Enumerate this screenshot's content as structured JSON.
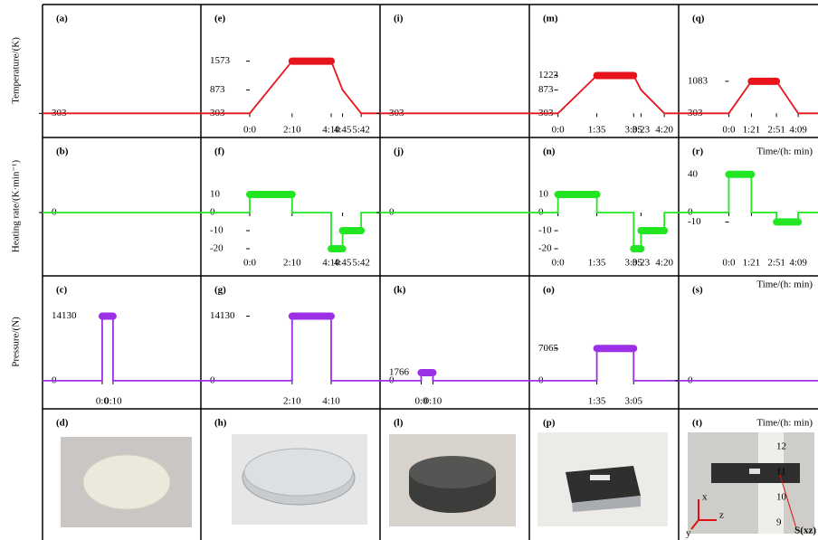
{
  "row_labels": [
    "Temperature/(K)",
    "Heating rate/(K·min⁻¹)",
    "Pressure/(N)"
  ],
  "photos": [
    {
      "label": "(d)"
    },
    {
      "label": "(h)"
    },
    {
      "label": "(l)"
    },
    {
      "label": "(p)"
    },
    {
      "label": "(t)",
      "annotations": [
        "x",
        "y",
        "z",
        "S(xz)"
      ],
      "ruler": [
        "12",
        "11",
        "10",
        "9"
      ]
    }
  ],
  "chart_data": [
    {
      "type": "line",
      "label": "(a)",
      "color": "#e8141b",
      "x": [
        -100,
        400
      ],
      "values": [
        303,
        303
      ],
      "xlim": [
        -100,
        400
      ],
      "ylim": [
        200,
        2400
      ],
      "xticks": [],
      "yticks": [
        303
      ]
    },
    {
      "type": "line",
      "label": "(e)",
      "color": "#e8141b",
      "x": [
        -150,
        0,
        130,
        250,
        285,
        342,
        400
      ],
      "values": [
        303,
        303,
        1573,
        1573,
        873,
        303,
        303
      ],
      "xlim": [
        -150,
        400
      ],
      "ylim": [
        200,
        2400
      ],
      "xticks": [
        {
          "value": 0,
          "label": "0:0"
        },
        {
          "value": 130,
          "label": "2:10"
        },
        {
          "value": 250,
          "label": "4:10"
        },
        {
          "value": 285,
          "label": "4:45"
        },
        {
          "value": 342,
          "label": "5:42"
        }
      ],
      "yticks": [
        303,
        873,
        1573
      ]
    },
    {
      "type": "line",
      "label": "(i)",
      "color": "#e8141b",
      "x": [
        -100,
        400
      ],
      "values": [
        303,
        303
      ],
      "xlim": [
        -100,
        400
      ],
      "ylim": [
        200,
        2400
      ],
      "xticks": [],
      "yticks": [
        303
      ]
    },
    {
      "type": "line",
      "label": "(m)",
      "color": "#e8141b",
      "x": [
        -70,
        0,
        95,
        185,
        203,
        260,
        295
      ],
      "values": [
        303,
        303,
        1223,
        1223,
        873,
        303,
        303
      ],
      "xlim": [
        -70,
        295
      ],
      "ylim": [
        200,
        2400
      ],
      "xticks": [
        {
          "value": 0,
          "label": "0:0"
        },
        {
          "value": 95,
          "label": "1:35"
        },
        {
          "value": 185,
          "label": "3:05"
        },
        {
          "value": 203,
          "label": "3:23"
        },
        {
          "value": 260,
          "label": "4:20"
        }
      ],
      "yticks": [
        303,
        873,
        1223
      ]
    },
    {
      "type": "line",
      "label": "(q)",
      "color": "#e8141b",
      "x": [
        -180,
        0,
        81,
        171,
        249,
        320
      ],
      "values": [
        303,
        303,
        1083,
        1083,
        303,
        303
      ],
      "xlim": [
        -180,
        320
      ],
      "ylim": [
        200,
        2400
      ],
      "xticks": [
        {
          "value": 0,
          "label": "0:0"
        },
        {
          "value": 81,
          "label": "1:21"
        },
        {
          "value": 171,
          "label": "2:51"
        },
        {
          "value": 249,
          "label": "4:09"
        }
      ],
      "yticks": [
        303,
        1083
      ],
      "xlabel": "Time/(h: min)"
    },
    {
      "type": "line",
      "label": "(b)",
      "color": "#22e622",
      "x": [
        -100,
        400
      ],
      "values": [
        0,
        0
      ],
      "xlim": [
        -100,
        400
      ],
      "ylim": [
        -21,
        29
      ],
      "xticks": [],
      "yticks": [
        0
      ]
    },
    {
      "type": "line",
      "label": "(f)",
      "color": "#22e622",
      "x": [
        -150,
        0,
        0,
        130,
        130,
        250,
        250,
        285,
        285,
        342,
        342,
        400
      ],
      "values": [
        0,
        0,
        10,
        10,
        0,
        0,
        -20,
        -20,
        -10,
        -10,
        0,
        0
      ],
      "xlim": [
        -150,
        400
      ],
      "ylim": [
        -21,
        29
      ],
      "xticks": [
        {
          "value": 0,
          "label": "0:0"
        },
        {
          "value": 130,
          "label": "2:10"
        },
        {
          "value": 250,
          "label": "4:10"
        },
        {
          "value": 285,
          "label": "4:45"
        },
        {
          "value": 342,
          "label": "5:42"
        }
      ],
      "yticks": [
        -20,
        -10,
        0,
        10
      ]
    },
    {
      "type": "line",
      "label": "(j)",
      "color": "#22e622",
      "x": [
        -100,
        400
      ],
      "values": [
        0,
        0
      ],
      "xlim": [
        -100,
        400
      ],
      "ylim": [
        -21,
        29
      ],
      "xticks": [],
      "yticks": [
        0
      ]
    },
    {
      "type": "line",
      "label": "(n)",
      "color": "#22e622",
      "x": [
        -70,
        0,
        0,
        95,
        95,
        185,
        185,
        203,
        203,
        260,
        260,
        295
      ],
      "values": [
        0,
        0,
        10,
        10,
        0,
        0,
        -20,
        -20,
        -10,
        -10,
        0,
        0
      ],
      "xlim": [
        -70,
        295
      ],
      "ylim": [
        -21,
        29
      ],
      "xticks": [
        {
          "value": 0,
          "label": "0:0"
        },
        {
          "value": 95,
          "label": "1:35"
        },
        {
          "value": 185,
          "label": "3:05"
        },
        {
          "value": 203,
          "label": "3:23"
        },
        {
          "value": 260,
          "label": "4:20"
        }
      ],
      "yticks": [
        -20,
        -10,
        0,
        10
      ]
    },
    {
      "type": "line",
      "label": "(r)",
      "color": "#22e622",
      "x": [
        -180,
        0,
        0,
        81,
        81,
        171,
        171,
        249,
        249,
        320
      ],
      "values": [
        0,
        0,
        40,
        40,
        0,
        0,
        -10,
        -10,
        0,
        0
      ],
      "xlim": [
        -180,
        320
      ],
      "ylim": [
        -40,
        55
      ],
      "xticks": [
        {
          "value": 0,
          "label": "0:0"
        },
        {
          "value": 81,
          "label": "1:21"
        },
        {
          "value": 171,
          "label": "2:51"
        },
        {
          "value": 249,
          "label": "4:09"
        }
      ],
      "yticks": [
        -10,
        0,
        40
      ],
      "xlabel": "Time/(h: min)"
    },
    {
      "type": "line",
      "label": "(c)",
      "color": "#9b30e6",
      "x": [
        -55,
        0,
        0,
        10,
        10,
        91
      ],
      "values": [
        0,
        0,
        14130,
        14130,
        0,
        0
      ],
      "xlim": [
        -55,
        91
      ],
      "ylim": [
        -1800,
        18000
      ],
      "xticks": [
        {
          "value": 0,
          "label": "0:0"
        },
        {
          "value": 10,
          "label": "0:10"
        }
      ],
      "yticks": [
        0,
        14130
      ]
    },
    {
      "type": "line",
      "label": "(g)",
      "color": "#9b30e6",
      "x": [
        -150,
        130,
        130,
        250,
        250,
        400
      ],
      "values": [
        0,
        0,
        14130,
        14130,
        0,
        0
      ],
      "xlim": [
        -150,
        400
      ],
      "ylim": [
        -1800,
        18000
      ],
      "xticks": [
        {
          "value": 130,
          "label": "2:10"
        },
        {
          "value": 250,
          "label": "4:10"
        }
      ],
      "yticks": [
        0,
        14130
      ]
    },
    {
      "type": "line",
      "label": "(k)",
      "color": "#9b30e6",
      "x": [
        -35,
        0,
        0,
        10,
        10,
        92
      ],
      "values": [
        0,
        0,
        1766,
        1766,
        0,
        0
      ],
      "xlim": [
        -35,
        92
      ],
      "ylim": [
        -1800,
        18000
      ],
      "xticks": [
        {
          "value": 0,
          "label": "0:0"
        },
        {
          "value": 10,
          "label": "0:10"
        }
      ],
      "yticks": [
        0,
        1766
      ]
    },
    {
      "type": "line",
      "label": "(o)",
      "color": "#9b30e6",
      "x": [
        -70,
        95,
        95,
        185,
        185,
        295
      ],
      "values": [
        0,
        0,
        7065,
        7065,
        0,
        0
      ],
      "xlim": [
        -70,
        295
      ],
      "ylim": [
        -1800,
        18000
      ],
      "xticks": [
        {
          "value": 95,
          "label": "1:35"
        },
        {
          "value": 185,
          "label": "3:05"
        }
      ],
      "yticks": [
        0,
        7065
      ]
    },
    {
      "type": "line",
      "label": "(s)",
      "color": "#9b30e6",
      "x": [
        -100,
        400
      ],
      "values": [
        0,
        0
      ],
      "xlim": [
        -100,
        400
      ],
      "ylim": [
        -1800,
        18000
      ],
      "xticks": [],
      "yticks": [
        0
      ],
      "xlabel": "Time/(h: min)"
    }
  ]
}
